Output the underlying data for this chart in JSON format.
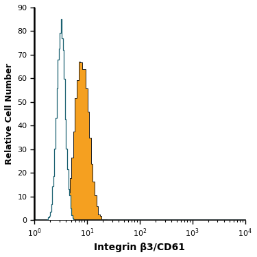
{
  "title": "",
  "xlabel": "Integrin β3/CD61",
  "ylabel": "Relative Cell Number",
  "xlim": [
    1.0,
    10000.0
  ],
  "ylim": [
    0,
    90
  ],
  "yticks": [
    0,
    10,
    20,
    30,
    40,
    50,
    60,
    70,
    80,
    90
  ],
  "background_color": "#ffffff",
  "orange_color": "#f5a020",
  "orange_edge_color": "#1a1a1a",
  "blue_color": "#1a6070",
  "orange_peak_x": 8.0,
  "orange_peak_y": 67,
  "orange_log_std": 0.3,
  "blue_peak_x": 3.2,
  "blue_peak_y": 85,
  "blue_log_std": 0.18,
  "n_samples": 12000,
  "n_bins": 120,
  "seed": 17
}
